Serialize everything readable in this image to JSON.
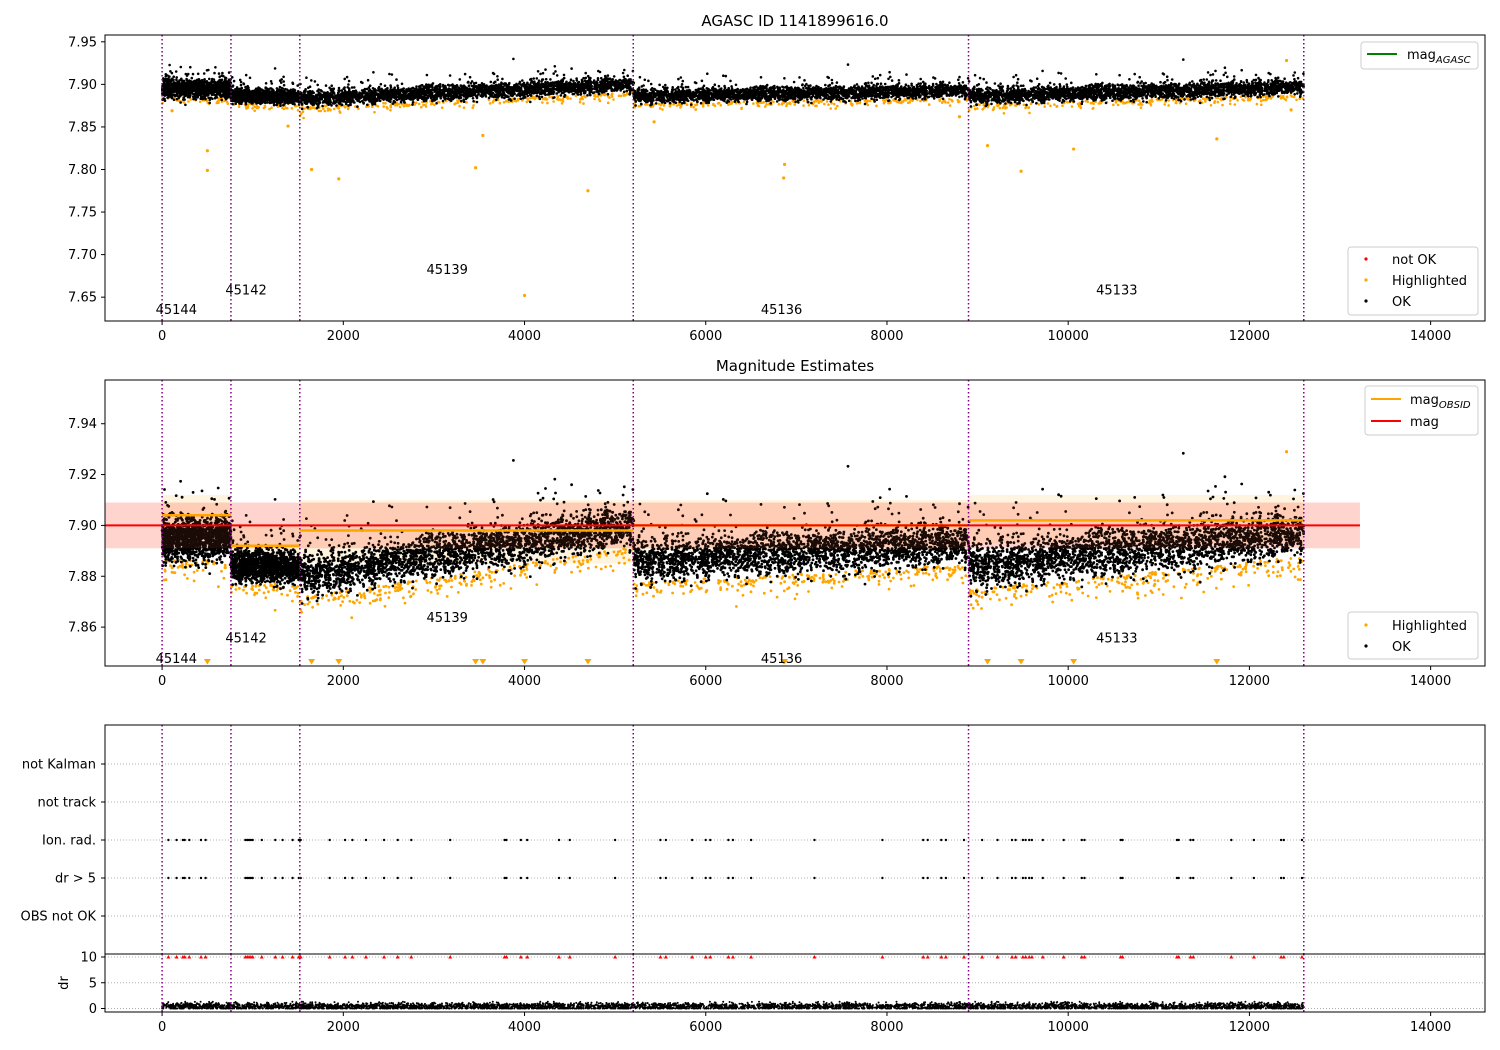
{
  "chart_data": [
    {
      "type": "scatter",
      "title": "AGASC ID 1141899616.0",
      "xlim": [
        -630,
        14600
      ],
      "ylim": [
        7.622,
        7.958
      ],
      "xticks": [
        0,
        2000,
        4000,
        6000,
        8000,
        10000,
        12000,
        14000
      ],
      "yticks": [
        7.65,
        7.7,
        7.75,
        7.8,
        7.85,
        7.9,
        7.95
      ],
      "ytick_labels": [
        "7.65",
        "7.70",
        "7.75",
        "7.80",
        "7.85",
        "7.90",
        "7.95"
      ],
      "obsid_boundaries": [
        0,
        760,
        1520,
        5200,
        8900,
        12600
      ],
      "obsid_labels": [
        {
          "text": "45144",
          "x": 370,
          "y": 7.635
        },
        {
          "text": "45142",
          "x": 1140,
          "y": 7.658
        },
        {
          "text": "45139",
          "x": 3360,
          "y": 7.682
        },
        {
          "text": "45136",
          "x": 7050,
          "y": 7.635
        },
        {
          "text": "45133",
          "x": 10750,
          "y": 7.658
        }
      ],
      "ok_band": {
        "description": "dense OK points by segment",
        "segments": [
          {
            "x": [
              0,
              760
            ],
            "center": 7.895,
            "spread": 0.012
          },
          {
            "x": [
              760,
              1520
            ],
            "center": 7.886,
            "spread": 0.01
          },
          {
            "x": [
              1520,
              5200
            ],
            "center_start": 7.883,
            "center_end": 7.9,
            "spread": 0.011
          },
          {
            "x": [
              5200,
              8900
            ],
            "center_start": 7.886,
            "center_end": 7.893,
            "spread": 0.01
          },
          {
            "x": [
              8900,
              12600
            ],
            "center_start": 7.886,
            "center_end": 7.897,
            "spread": 0.011
          }
        ]
      },
      "highlighted_outliers": [
        {
          "x": 500,
          "y": 7.822
        },
        {
          "x": 500,
          "y": 7.799
        },
        {
          "x": 1650,
          "y": 7.8
        },
        {
          "x": 1950,
          "y": 7.789
        },
        {
          "x": 3460,
          "y": 7.802
        },
        {
          "x": 3540,
          "y": 7.84
        },
        {
          "x": 4000,
          "y": 7.652
        },
        {
          "x": 4700,
          "y": 7.775
        },
        {
          "x": 6870,
          "y": 7.806
        },
        {
          "x": 6860,
          "y": 7.79
        },
        {
          "x": 9110,
          "y": 7.828
        },
        {
          "x": 9480,
          "y": 7.798
        },
        {
          "x": 10060,
          "y": 7.824
        },
        {
          "x": 11640,
          "y": 7.836
        },
        {
          "x": 12410,
          "y": 7.928
        },
        {
          "x": 1390,
          "y": 7.851
        },
        {
          "x": 5430,
          "y": 7.856
        },
        {
          "x": 8800,
          "y": 7.862
        },
        {
          "x": 110,
          "y": 7.869
        },
        {
          "x": 12460,
          "y": 7.87
        }
      ],
      "legends": [
        {
          "position": "upper right",
          "entries": [
            {
              "label": "mag",
              "subscript": "AGASC",
              "color": "#008000",
              "marker": "line"
            }
          ]
        },
        {
          "position": "lower right",
          "entries": [
            {
              "label": "not OK",
              "color": "#ff0000",
              "marker": "dot"
            },
            {
              "label": "Highlighted",
              "color": "#ffa500",
              "marker": "dot"
            },
            {
              "label": "OK",
              "color": "#000000",
              "marker": "dot"
            }
          ]
        }
      ]
    },
    {
      "type": "scatter",
      "title": "Magnitude Estimates",
      "xlim": [
        -630,
        14600
      ],
      "ylim": [
        7.8447,
        7.9572
      ],
      "xticks": [
        0,
        2000,
        4000,
        6000,
        8000,
        10000,
        12000,
        14000
      ],
      "yticks": [
        7.86,
        7.88,
        7.9,
        7.92,
        7.94
      ],
      "ytick_labels": [
        "7.86",
        "7.88",
        "7.90",
        "7.92",
        "7.94"
      ],
      "obsid_boundaries": [
        0,
        760,
        1520,
        5200,
        8900,
        12600
      ],
      "obsid_labels": [
        {
          "text": "45144",
          "x": 370,
          "y": 7.8475
        },
        {
          "text": "45142",
          "x": 1140,
          "y": 7.8555
        },
        {
          "text": "45139",
          "x": 3360,
          "y": 7.8635
        },
        {
          "text": "45136",
          "x": 7050,
          "y": 7.8475
        },
        {
          "text": "45133",
          "x": 10750,
          "y": 7.8555
        }
      ],
      "mag": {
        "value": 7.9,
        "x": [
          -630,
          13220
        ],
        "band": [
          7.891,
          7.909
        ],
        "color": "#ff0000"
      },
      "mag_obsid": [
        {
          "x": [
            0,
            760
          ],
          "value": 7.904,
          "band": [
            7.896,
            7.912
          ]
        },
        {
          "x": [
            760,
            1520
          ],
          "value": 7.892,
          "band": [
            7.884,
            7.9
          ]
        },
        {
          "x": [
            1520,
            5200
          ],
          "value": 7.898,
          "band": [
            7.885,
            7.91
          ]
        },
        {
          "x": [
            5200,
            8900
          ],
          "value": 7.9,
          "band": [
            7.89,
            7.91
          ]
        },
        {
          "x": [
            8900,
            12600
          ],
          "value": 7.902,
          "band": [
            7.893,
            7.912
          ]
        }
      ],
      "ok_band": {
        "segments": [
          {
            "x": [
              0,
              760
            ],
            "center": 7.895,
            "spread": 0.01
          },
          {
            "x": [
              760,
              1520
            ],
            "center": 7.884,
            "spread": 0.008
          },
          {
            "x": [
              1520,
              5200
            ],
            "center_start": 7.88,
            "center_end": 7.9,
            "spread": 0.01
          },
          {
            "x": [
              5200,
              8900
            ],
            "center_start": 7.886,
            "center_end": 7.893,
            "spread": 0.01
          },
          {
            "x": [
              8900,
              12600
            ],
            "center_start": 7.884,
            "center_end": 7.897,
            "spread": 0.011
          }
        ]
      },
      "clipped_markers_x": [
        500,
        1650,
        1950,
        3460,
        3540,
        4000,
        4700,
        6860,
        6870,
        9110,
        9480,
        10060,
        11640
      ],
      "legends": [
        {
          "position": "upper right",
          "entries": [
            {
              "label": "mag",
              "subscript": "OBSID",
              "color": "#ffa500",
              "marker": "line"
            },
            {
              "label": "mag",
              "color": "#ff0000",
              "marker": "line"
            }
          ]
        },
        {
          "position": "lower right",
          "entries": [
            {
              "label": "Highlighted",
              "color": "#ffa500",
              "marker": "dot"
            },
            {
              "label": "OK",
              "color": "#000000",
              "marker": "dot"
            }
          ]
        }
      ]
    },
    {
      "type": "scatter",
      "title": "",
      "xlim": [
        -630,
        14600
      ],
      "xticks": [
        0,
        2000,
        4000,
        6000,
        8000,
        10000,
        12000,
        14000
      ],
      "flag_rows": [
        "not Kalman",
        "not track",
        "Ion. rad.",
        "dr > 5",
        "OBS not OK"
      ],
      "obsid_boundaries": [
        0,
        760,
        1520,
        5200,
        8900,
        12600
      ],
      "flag_times": [
        70,
        160,
        230,
        250,
        300,
        430,
        480,
        920,
        940,
        960,
        980,
        1000,
        1100,
        1250,
        1330,
        1440,
        1510,
        1530,
        1850,
        2020,
        2100,
        2250,
        2450,
        2600,
        2750,
        3180,
        3780,
        3800,
        3960,
        4030,
        4380,
        4500,
        5000,
        5500,
        5560,
        5850,
        6000,
        6050,
        6250,
        6300,
        6500,
        7200,
        7950,
        8400,
        8450,
        8600,
        8650,
        8850,
        9050,
        9220,
        9380,
        9420,
        9500,
        9530,
        9570,
        9600,
        9720,
        9950,
        10150,
        10180,
        10580,
        10600,
        11200,
        11220,
        11350,
        11380,
        11800,
        12050,
        12350,
        12380,
        12580
      ],
      "dr": {
        "ylim": [
          -0.8,
          10.5
        ],
        "yticks": [
          0,
          5,
          10
        ],
        "ytick_labels": [
          "0",
          "5",
          "10"
        ],
        "ylabel": "dr",
        "baseline_mean": 0.4,
        "baseline_spread": 0.35,
        "clipped_value": 10
      }
    }
  ]
}
